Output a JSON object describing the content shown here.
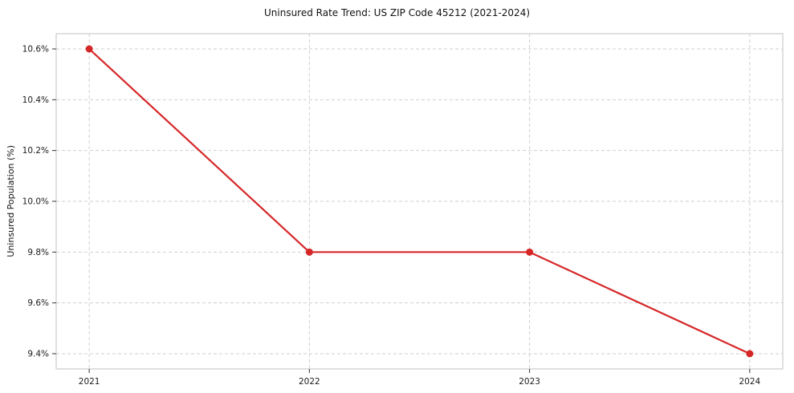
{
  "chart_data": {
    "type": "line",
    "title": "Uninsured Rate Trend: US ZIP Code 45212 (2021-2024)",
    "xlabel": "",
    "ylabel": "Uninsured Population (%)",
    "x": [
      2021,
      2022,
      2023,
      2024
    ],
    "values": [
      10.6,
      9.8,
      9.8,
      9.4
    ],
    "series_name": "Uninsured rate",
    "xlim": [
      2020.85,
      2024.15
    ],
    "ylim": [
      9.34,
      10.66
    ],
    "yticks": [
      9.4,
      9.6,
      9.8,
      10.0,
      10.2,
      10.4,
      10.6
    ],
    "ytick_labels": [
      "9.4%",
      "9.6%",
      "9.8%",
      "10.0%",
      "10.2%",
      "10.4%",
      "10.6%"
    ],
    "xticks": [
      2021,
      2022,
      2023,
      2024
    ],
    "xtick_labels": [
      "2021",
      "2022",
      "2023",
      "2024"
    ],
    "grid": true,
    "legend": "none",
    "line_color": "#d62728",
    "marker": "circle",
    "background": "#ffffff"
  }
}
